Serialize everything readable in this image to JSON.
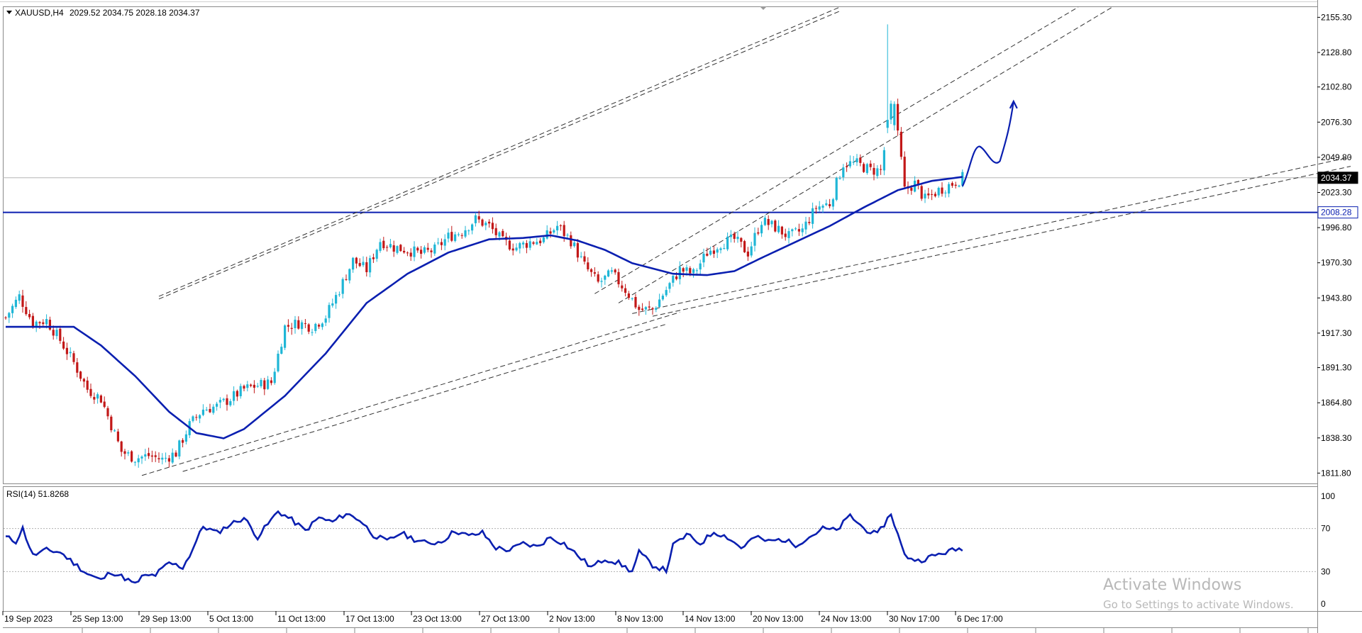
{
  "header": {
    "symbol_label": "XAUUSD,H4",
    "ohlc": "2029.52 2034.75 2028.18 2034.37"
  },
  "rsi_label": "RSI(14) 51.8268",
  "watermark": {
    "title": "Activate Windows",
    "subtitle": "Go to Settings to activate Windows."
  },
  "colors": {
    "bull": "#1fb6d6",
    "bear": "#c21818",
    "ma": "#0a1fb0",
    "level": "#0a1fb0",
    "rsi": "#0a1fb0",
    "channel": "#333333"
  },
  "chart_data": [
    {
      "type": "candlestick",
      "symbol": "XAUUSD",
      "timeframe": "H4",
      "y_ticks": [
        "2155.30",
        "2128.80",
        "2102.80",
        "2076.30",
        "2049.80",
        "2023.30",
        "1996.80",
        "1970.30",
        "1943.80",
        "1917.30",
        "1891.30",
        "1864.80",
        "1838.30",
        "1811.80"
      ],
      "ylim": [
        1804,
        2163
      ],
      "x_ticks": [
        "19 Sep 2023",
        "25 Sep 13:00",
        "29 Sep 13:00",
        "5 Oct 13:00",
        "11 Oct 13:00",
        "17 Oct 13:00",
        "23 Oct 13:00",
        "27 Oct 13:00",
        "2 Nov 13:00",
        "8 Nov 13:00",
        "14 Nov 13:00",
        "20 Nov 13:00",
        "24 Nov 13:00",
        "30 Nov 17:00",
        "6 Dec 17:00"
      ],
      "price_markers": [
        {
          "value": 2034.37,
          "label": "2034.37",
          "style": "current"
        },
        {
          "value": 2008.28,
          "label": "2008.28",
          "style": "level"
        }
      ],
      "trend_anchors": [
        {
          "t": 0,
          "close": 1929
        },
        {
          "t": 4,
          "close": 1945
        },
        {
          "t": 8,
          "close": 1925
        },
        {
          "t": 12,
          "close": 1927
        },
        {
          "t": 16,
          "close": 1912
        },
        {
          "t": 20,
          "close": 1895
        },
        {
          "t": 24,
          "close": 1875
        },
        {
          "t": 28,
          "close": 1868
        },
        {
          "t": 31,
          "close": 1848
        },
        {
          "t": 34,
          "close": 1828
        },
        {
          "t": 38,
          "close": 1823
        },
        {
          "t": 42,
          "close": 1825
        },
        {
          "t": 46,
          "close": 1822
        },
        {
          "t": 50,
          "close": 1827
        },
        {
          "t": 54,
          "close": 1848
        },
        {
          "t": 58,
          "close": 1860
        },
        {
          "t": 62,
          "close": 1862
        },
        {
          "t": 66,
          "close": 1868
        },
        {
          "t": 70,
          "close": 1875
        },
        {
          "t": 74,
          "close": 1878
        },
        {
          "t": 78,
          "close": 1880
        },
        {
          "t": 82,
          "close": 1922
        },
        {
          "t": 86,
          "close": 1925
        },
        {
          "t": 90,
          "close": 1922
        },
        {
          "t": 94,
          "close": 1930
        },
        {
          "t": 98,
          "close": 1950
        },
        {
          "t": 102,
          "close": 1972
        },
        {
          "t": 106,
          "close": 1965
        },
        {
          "t": 110,
          "close": 1987
        },
        {
          "t": 114,
          "close": 1982
        },
        {
          "t": 118,
          "close": 1980
        },
        {
          "t": 122,
          "close": 1977
        },
        {
          "t": 126,
          "close": 1980
        },
        {
          "t": 130,
          "close": 1990
        },
        {
          "t": 134,
          "close": 1994
        },
        {
          "t": 138,
          "close": 2003
        },
        {
          "t": 142,
          "close": 1998
        },
        {
          "t": 146,
          "close": 1986
        },
        {
          "t": 150,
          "close": 1982
        },
        {
          "t": 154,
          "close": 1986
        },
        {
          "t": 158,
          "close": 1988
        },
        {
          "t": 162,
          "close": 1998
        },
        {
          "t": 166,
          "close": 1987
        },
        {
          "t": 170,
          "close": 1968
        },
        {
          "t": 174,
          "close": 1955
        },
        {
          "t": 178,
          "close": 1962
        },
        {
          "t": 182,
          "close": 1950
        },
        {
          "t": 186,
          "close": 1935
        },
        {
          "t": 190,
          "close": 1935
        },
        {
          "t": 194,
          "close": 1950
        },
        {
          "t": 198,
          "close": 1965
        },
        {
          "t": 202,
          "close": 1962
        },
        {
          "t": 206,
          "close": 1978
        },
        {
          "t": 210,
          "close": 1985
        },
        {
          "t": 214,
          "close": 1988
        },
        {
          "t": 218,
          "close": 1978
        },
        {
          "t": 222,
          "close": 2002
        },
        {
          "t": 226,
          "close": 1997
        },
        {
          "t": 230,
          "close": 1990
        },
        {
          "t": 234,
          "close": 1995
        },
        {
          "t": 238,
          "close": 2012
        },
        {
          "t": 242,
          "close": 2015
        },
        {
          "t": 246,
          "close": 2045
        },
        {
          "t": 250,
          "close": 2045
        },
        {
          "t": 254,
          "close": 2040
        },
        {
          "t": 257,
          "close": 2040
        },
        {
          "t": 260,
          "close": 2086
        },
        {
          "t": 262,
          "close": 2070
        },
        {
          "t": 264,
          "close": 2025
        },
        {
          "t": 267,
          "close": 2030
        },
        {
          "t": 270,
          "close": 2018
        },
        {
          "t": 274,
          "close": 2025
        },
        {
          "t": 278,
          "close": 2030
        },
        {
          "t": 281,
          "close": 2034.37
        }
      ],
      "bar_count": 282,
      "special_bars": [
        {
          "t": 259,
          "open": 2072,
          "high": 2150,
          "low": 2068,
          "close": 2078
        },
        {
          "t": 261,
          "open": 2074,
          "high": 2092,
          "low": 2070,
          "close": 2090
        },
        {
          "t": 262,
          "open": 2090,
          "high": 2094,
          "low": 2066,
          "close": 2070
        }
      ],
      "moving_average": [
        {
          "t": 0,
          "v": 1922
        },
        {
          "t": 20,
          "v": 1922
        },
        {
          "t": 28,
          "v": 1908
        },
        {
          "t": 38,
          "v": 1885
        },
        {
          "t": 48,
          "v": 1858
        },
        {
          "t": 56,
          "v": 1842
        },
        {
          "t": 64,
          "v": 1838
        },
        {
          "t": 70,
          "v": 1845
        },
        {
          "t": 82,
          "v": 1870
        },
        {
          "t": 94,
          "v": 1902
        },
        {
          "t": 106,
          "v": 1940
        },
        {
          "t": 118,
          "v": 1962
        },
        {
          "t": 130,
          "v": 1978
        },
        {
          "t": 142,
          "v": 1988
        },
        {
          "t": 152,
          "v": 1989
        },
        {
          "t": 160,
          "v": 1991
        },
        {
          "t": 168,
          "v": 1987
        },
        {
          "t": 176,
          "v": 1980
        },
        {
          "t": 184,
          "v": 1970
        },
        {
          "t": 196,
          "v": 1962
        },
        {
          "t": 206,
          "v": 1961
        },
        {
          "t": 214,
          "v": 1964
        },
        {
          "t": 222,
          "v": 1974
        },
        {
          "t": 232,
          "v": 1986
        },
        {
          "t": 242,
          "v": 1998
        },
        {
          "t": 252,
          "v": 2012
        },
        {
          "t": 262,
          "v": 2025
        },
        {
          "t": 272,
          "v": 2032
        },
        {
          "t": 281,
          "v": 2035
        }
      ],
      "trend_channels": [
        {
          "t1": 40,
          "p1": 1810,
          "t2": 198,
          "p2": 1933,
          "dash": true
        },
        {
          "t1": 52,
          "p1": 1813,
          "t2": 194,
          "p2": 1924,
          "dash": true
        },
        {
          "t1": 184,
          "p1": 1932,
          "t2": 395,
          "p2": 2050,
          "dash": true
        },
        {
          "t1": 190,
          "p1": 1930,
          "t2": 395,
          "p2": 2043,
          "dash": true
        },
        {
          "t1": 45,
          "p1": 1945,
          "t2": 245,
          "p2": 2163,
          "dash": true
        },
        {
          "t1": 45,
          "p1": 1943,
          "t2": 245,
          "p2": 2160,
          "dash": true
        },
        {
          "t1": 173,
          "p1": 1947,
          "t2": 315,
          "p2": 2163,
          "dash": true
        },
        {
          "t1": 180,
          "p1": 1940,
          "t2": 325,
          "p2": 2163,
          "dash": true
        }
      ],
      "level_lines": [
        {
          "value": 2008.28
        }
      ],
      "projection_path": [
        {
          "t": 281,
          "v": 2028
        },
        {
          "t": 286,
          "v": 2058
        },
        {
          "t": 292,
          "v": 2047
        },
        {
          "t": 294,
          "v": 2064
        },
        {
          "t": 296,
          "v": 2092
        }
      ]
    },
    {
      "type": "line",
      "title": "RSI(14) 51.8268",
      "y_ticks": [
        "100",
        "70",
        "30",
        "0"
      ],
      "ylim": [
        0,
        100
      ],
      "levels": [
        70,
        30
      ],
      "rsi_anchors": [
        {
          "t": 0,
          "v": 62
        },
        {
          "t": 3,
          "v": 58
        },
        {
          "t": 5,
          "v": 70
        },
        {
          "t": 8,
          "v": 45
        },
        {
          "t": 12,
          "v": 50
        },
        {
          "t": 16,
          "v": 48
        },
        {
          "t": 20,
          "v": 38
        },
        {
          "t": 24,
          "v": 28
        },
        {
          "t": 28,
          "v": 22
        },
        {
          "t": 31,
          "v": 30
        },
        {
          "t": 35,
          "v": 24
        },
        {
          "t": 38,
          "v": 18
        },
        {
          "t": 40,
          "v": 25
        },
        {
          "t": 44,
          "v": 27
        },
        {
          "t": 48,
          "v": 38
        },
        {
          "t": 52,
          "v": 34
        },
        {
          "t": 54,
          "v": 45
        },
        {
          "t": 58,
          "v": 72
        },
        {
          "t": 62,
          "v": 66
        },
        {
          "t": 66,
          "v": 74
        },
        {
          "t": 70,
          "v": 80
        },
        {
          "t": 74,
          "v": 62
        },
        {
          "t": 76,
          "v": 70
        },
        {
          "t": 80,
          "v": 86
        },
        {
          "t": 84,
          "v": 78
        },
        {
          "t": 88,
          "v": 68
        },
        {
          "t": 92,
          "v": 80
        },
        {
          "t": 96,
          "v": 76
        },
        {
          "t": 100,
          "v": 84
        },
        {
          "t": 104,
          "v": 78
        },
        {
          "t": 108,
          "v": 64
        },
        {
          "t": 112,
          "v": 58
        },
        {
          "t": 116,
          "v": 66
        },
        {
          "t": 120,
          "v": 60
        },
        {
          "t": 124,
          "v": 56
        },
        {
          "t": 128,
          "v": 58
        },
        {
          "t": 132,
          "v": 68
        },
        {
          "t": 136,
          "v": 63
        },
        {
          "t": 140,
          "v": 66
        },
        {
          "t": 144,
          "v": 52
        },
        {
          "t": 148,
          "v": 50
        },
        {
          "t": 152,
          "v": 56
        },
        {
          "t": 156,
          "v": 53
        },
        {
          "t": 160,
          "v": 62
        },
        {
          "t": 164,
          "v": 56
        },
        {
          "t": 168,
          "v": 45
        },
        {
          "t": 172,
          "v": 34
        },
        {
          "t": 176,
          "v": 42
        },
        {
          "t": 180,
          "v": 38
        },
        {
          "t": 184,
          "v": 30
        },
        {
          "t": 186,
          "v": 48
        },
        {
          "t": 190,
          "v": 36
        },
        {
          "t": 194,
          "v": 31
        },
        {
          "t": 196,
          "v": 54
        },
        {
          "t": 200,
          "v": 64
        },
        {
          "t": 204,
          "v": 56
        },
        {
          "t": 208,
          "v": 67
        },
        {
          "t": 212,
          "v": 62
        },
        {
          "t": 216,
          "v": 52
        },
        {
          "t": 220,
          "v": 62
        },
        {
          "t": 224,
          "v": 58
        },
        {
          "t": 228,
          "v": 60
        },
        {
          "t": 232,
          "v": 55
        },
        {
          "t": 236,
          "v": 62
        },
        {
          "t": 240,
          "v": 70
        },
        {
          "t": 244,
          "v": 68
        },
        {
          "t": 248,
          "v": 82
        },
        {
          "t": 252,
          "v": 70
        },
        {
          "t": 256,
          "v": 64
        },
        {
          "t": 258,
          "v": 74
        },
        {
          "t": 260,
          "v": 84
        },
        {
          "t": 264,
          "v": 45
        },
        {
          "t": 268,
          "v": 40
        },
        {
          "t": 272,
          "v": 44
        },
        {
          "t": 276,
          "v": 48
        },
        {
          "t": 281,
          "v": 51.83
        }
      ]
    }
  ]
}
